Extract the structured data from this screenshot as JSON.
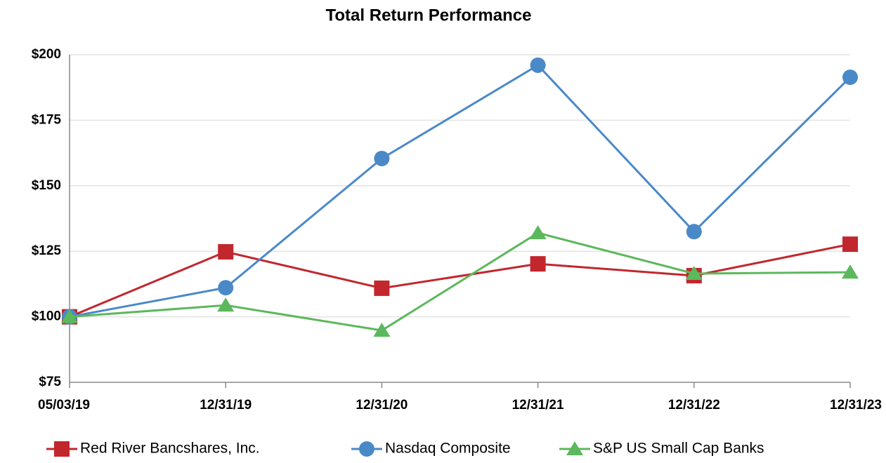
{
  "chart_data": {
    "type": "line",
    "title": "Total Return Performance",
    "categories": [
      "05/03/19",
      "12/31/19",
      "12/31/20",
      "12/31/21",
      "12/31/22",
      "12/31/23"
    ],
    "series": [
      {
        "name": "Red River Bancshares, Inc.",
        "color": "#c1272d",
        "marker": "square",
        "values": [
          100,
          124.8,
          110.9,
          120.2,
          115.7,
          127.7
        ]
      },
      {
        "name": "Nasdaq Composite",
        "color": "#4a89c8",
        "marker": "circle",
        "values": [
          100,
          111.1,
          160.4,
          196.0,
          132.5,
          191.4
        ]
      },
      {
        "name": "S&P US Small Cap Banks",
        "color": "#5cb85c",
        "marker": "triangle",
        "values": [
          100,
          104.4,
          94.8,
          132.0,
          116.5,
          117.0
        ]
      }
    ],
    "ylim": [
      75,
      200
    ],
    "yticks": [
      {
        "value": 75,
        "label": "$75"
      },
      {
        "value": 100,
        "label": "$100"
      },
      {
        "value": 125,
        "label": "$125"
      },
      {
        "value": 150,
        "label": "$150"
      },
      {
        "value": 175,
        "label": "$175"
      },
      {
        "value": 200,
        "label": "$200"
      }
    ],
    "grid": true,
    "legend": "bottom"
  }
}
